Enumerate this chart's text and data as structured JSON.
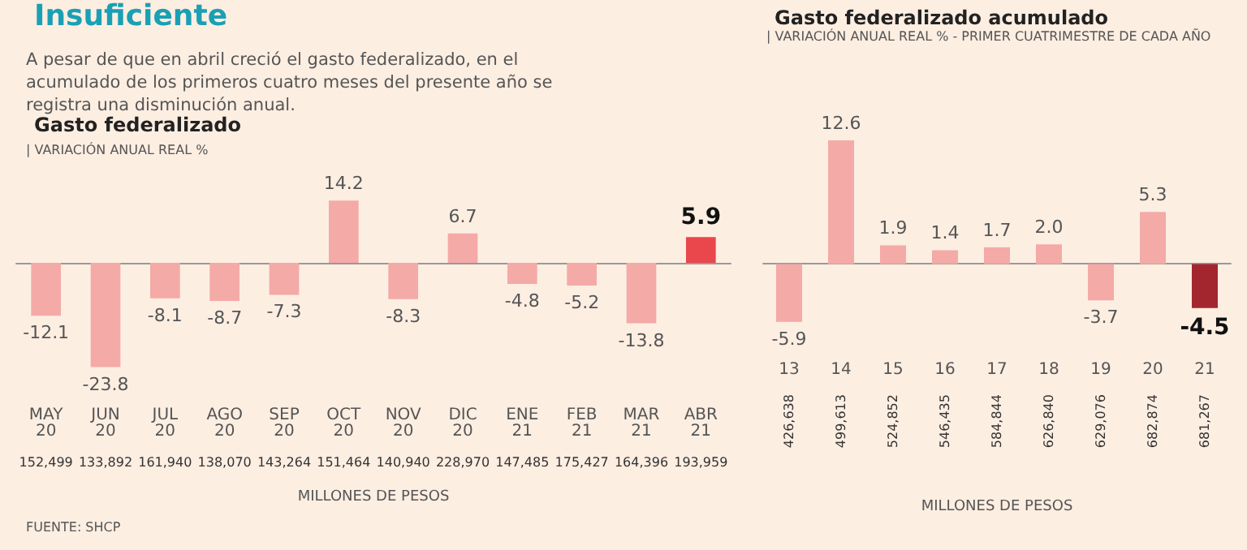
{
  "chart_data": [
    {
      "type": "bar",
      "title": "Gasto federalizado",
      "subtitle": "| VARIACIÓN ANUAL REAL %",
      "xlabel": "MILLONES DE PESOS",
      "categories": [
        "MAY 20",
        "JUN 20",
        "JUL 20",
        "AGO 20",
        "SEP 20",
        "OCT 20",
        "NOV 20",
        "DIC 20",
        "ENE 21",
        "FEB 21",
        "MAR 21",
        "ABR 21"
      ],
      "values": [
        -12.1,
        -23.8,
        -8.1,
        -8.7,
        -7.3,
        14.2,
        -8.3,
        6.7,
        -4.8,
        -5.2,
        -13.8,
        5.9
      ],
      "value_labels": [
        "-12.1",
        "-23.8",
        "-8.1",
        "-8.7",
        "-7.3",
        "14.2",
        "-8.3",
        "6.7",
        "-4.8",
        "-5.2",
        "-13.8",
        "5.9"
      ],
      "colors": [
        "#f4aaa6",
        "#f4aaa6",
        "#f4aaa6",
        "#f4aaa6",
        "#f4aaa6",
        "#f4aaa6",
        "#f4aaa6",
        "#f4aaa6",
        "#f4aaa6",
        "#f4aaa6",
        "#f4aaa6",
        "#e9474b"
      ],
      "annotations": [
        "Insuficiente",
        "A pesar de que en abril creció el gasto federalizado, en el acumulado de los primeros cuatro meses del presente año se registra una disminución anual.",
        "FUENTE: SHCP",
        "152,499",
        "133,892",
        "161,940",
        "138,070",
        "143,264",
        "151,464",
        "140,940",
        "228,970",
        "147,485",
        "175,427",
        "164,396",
        "193,959"
      ]
    },
    {
      "type": "bar",
      "title": "Gasto federalizado acumulado",
      "subtitle": "| VARIACIÓN ANUAL REAL % - PRIMER CUATRIMESTRE DE CADA AÑO",
      "xlabel": "MILLONES DE PESOS",
      "categories": [
        "13",
        "14",
        "15",
        "16",
        "17",
        "18",
        "19",
        "20",
        "21"
      ],
      "values": [
        -5.9,
        12.6,
        1.9,
        1.4,
        1.7,
        2.0,
        -3.7,
        5.3,
        -4.5
      ],
      "value_labels": [
        "-5.9",
        "12.6",
        "1.9",
        "1.4",
        "1.7",
        "2.0",
        "-3.7",
        "5.3",
        "-4.5"
      ],
      "colors": [
        "#f4aaa6",
        "#f4aaa6",
        "#f4aaa6",
        "#f4aaa6",
        "#f4aaa6",
        "#f4aaa6",
        "#f4aaa6",
        "#f4aaa6",
        "#a3262e"
      ],
      "annotations": [
        "426,638",
        "499,613",
        "524,852",
        "546,435",
        "584,844",
        "626,840",
        "629,076",
        "682,874",
        "681,267"
      ]
    }
  ]
}
